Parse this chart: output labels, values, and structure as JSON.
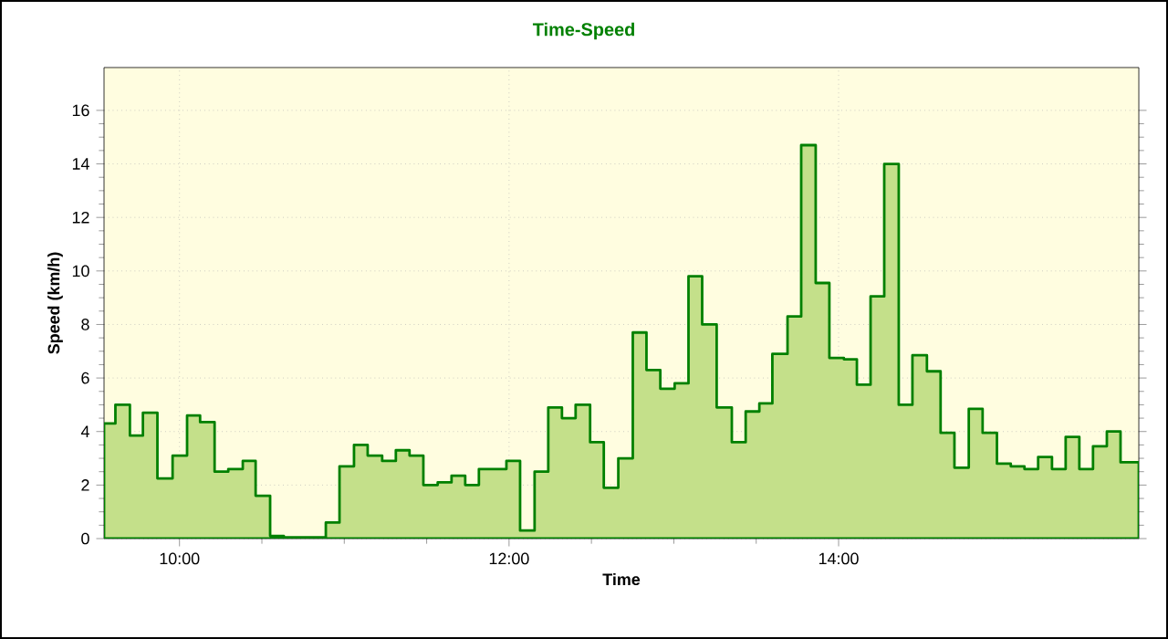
{
  "chart_data": {
    "type": "area",
    "title": "Time-Speed",
    "xlabel": "Time",
    "ylabel": "Speed (km/h)",
    "x": [
      9.542,
      9.611,
      9.699,
      9.778,
      9.866,
      9.958,
      10.046,
      10.125,
      10.213,
      10.296,
      10.384,
      10.462,
      10.55,
      10.633,
      10.888,
      10.971,
      11.059,
      11.142,
      11.23,
      11.313,
      11.396,
      11.48,
      11.567,
      11.651,
      11.734,
      11.817,
      11.984,
      12.067,
      12.155,
      12.238,
      12.321,
      12.404,
      12.492,
      12.575,
      12.663,
      12.751,
      12.834,
      12.918,
      13.005,
      13.089,
      13.172,
      13.26,
      13.352,
      13.436,
      13.519,
      13.598,
      13.69,
      13.773,
      13.861,
      13.944,
      14.032,
      14.111,
      14.194,
      14.277,
      14.365,
      14.448,
      14.536,
      14.619,
      14.703,
      14.79,
      14.874,
      14.961,
      15.045,
      15.128,
      15.211,
      15.295,
      15.378,
      15.461,
      15.544,
      15.628,
      15.711,
      15.822
    ],
    "series": [
      {
        "color": "#c4e08a",
        "values": [
          4.3,
          5.0,
          3.85,
          4.7,
          2.25,
          3.1,
          4.6,
          4.35,
          2.5,
          2.6,
          2.9,
          1.6,
          0.1,
          0.05,
          0.6,
          2.7,
          3.5,
          3.1,
          2.9,
          3.3,
          3.1,
          2.0,
          2.1,
          2.35,
          2.0,
          2.6,
          2.9,
          0.3,
          2.5,
          4.9,
          4.5,
          5.0,
          3.6,
          1.9,
          3.0,
          7.7,
          6.3,
          5.6,
          5.8,
          9.8,
          8.0,
          4.9,
          3.6,
          4.75,
          5.05,
          6.9,
          8.3,
          14.7,
          9.55,
          6.75,
          6.7,
          5.75,
          9.05,
          14.0,
          5.0,
          6.85,
          6.25,
          3.95,
          2.65,
          4.85,
          3.95,
          2.8,
          2.7,
          2.6,
          3.05,
          2.6,
          3.8,
          2.6,
          3.45,
          4.0,
          2.85,
          2.85
        ]
      }
    ],
    "xlim": [
      9.542,
      15.822
    ],
    "xticks": [
      {
        "value": 10,
        "label": "10:00"
      },
      {
        "value": 12,
        "label": "12:00"
      },
      {
        "value": 14,
        "label": "14:00"
      }
    ],
    "ylim": [
      0,
      17.6
    ],
    "yticks": [
      0,
      2,
      4,
      6,
      8,
      10,
      12,
      14,
      16
    ],
    "grid": true
  }
}
